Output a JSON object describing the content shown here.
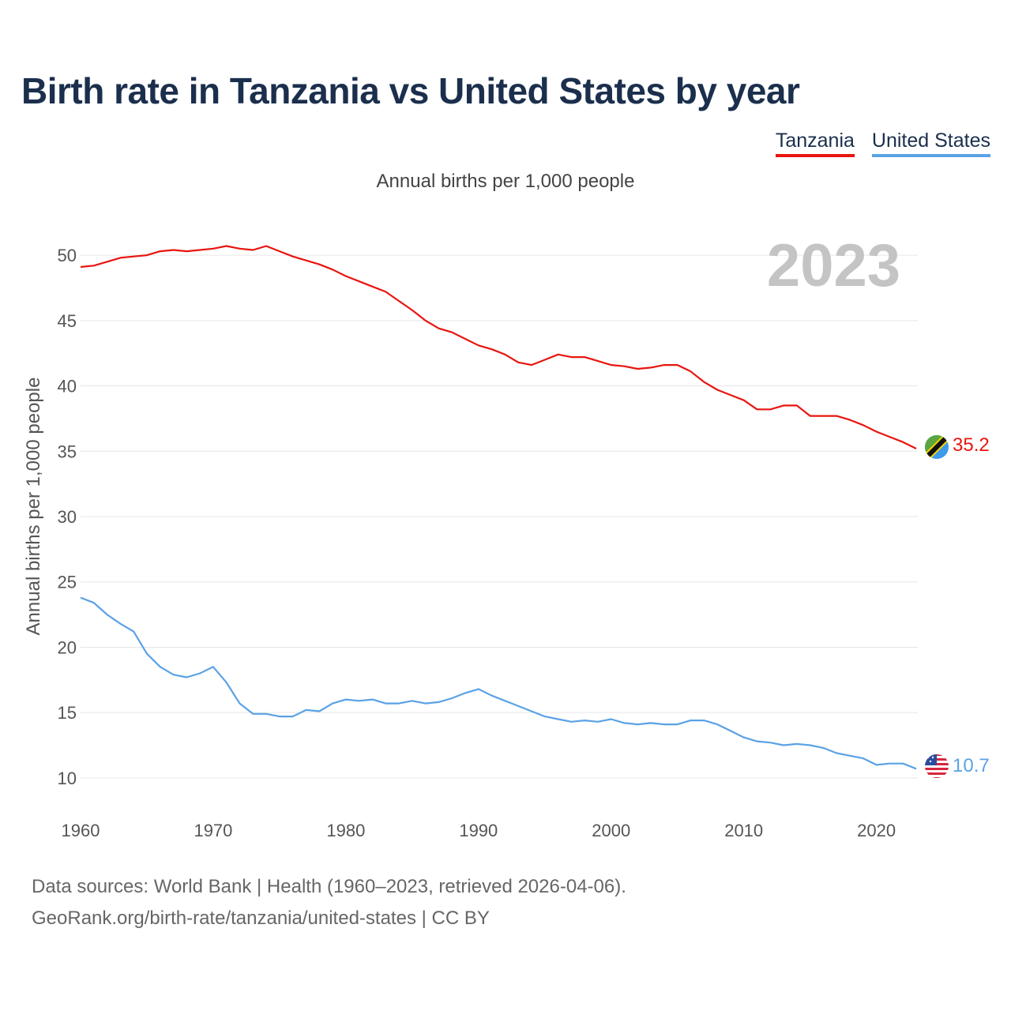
{
  "title": "Birth rate in Tanzania vs United States by year",
  "subtitle": "Annual births per 1,000 people",
  "legend": [
    {
      "label": "Tanzania",
      "color": "#e8150f"
    },
    {
      "label": "United States",
      "color": "#5aa2e6"
    }
  ],
  "source": {
    "line1": "Data sources: World Bank | Health (1960–2023, retrieved 2026-04-06).",
    "line2": "GeoRank.org/birth-rate/tanzania/united-states | CC BY"
  },
  "chart_data": {
    "type": "line",
    "title": "Birth rate in Tanzania vs United States by year",
    "ylabel": "Annual births per 1,000 people",
    "xlabel": "",
    "year_label": "2023",
    "xlim": [
      1960,
      2023
    ],
    "ylim": [
      8,
      52
    ],
    "x_ticks": [
      1960,
      1970,
      1980,
      1990,
      2000,
      2010,
      2020
    ],
    "y_ticks": [
      10,
      15,
      20,
      25,
      30,
      35,
      40,
      45,
      50
    ],
    "grid": true,
    "legend_position": "top-right",
    "x": [
      1960,
      1961,
      1962,
      1963,
      1964,
      1965,
      1966,
      1967,
      1968,
      1969,
      1970,
      1971,
      1972,
      1973,
      1974,
      1975,
      1976,
      1977,
      1978,
      1979,
      1980,
      1981,
      1982,
      1983,
      1984,
      1985,
      1986,
      1987,
      1988,
      1989,
      1990,
      1991,
      1992,
      1993,
      1994,
      1995,
      1996,
      1997,
      1998,
      1999,
      2000,
      2001,
      2002,
      2003,
      2004,
      2005,
      2006,
      2007,
      2008,
      2009,
      2010,
      2011,
      2012,
      2013,
      2014,
      2015,
      2016,
      2017,
      2018,
      2019,
      2020,
      2021,
      2022,
      2023
    ],
    "series": [
      {
        "name": "Tanzania",
        "color": "#e8150f",
        "end_label": "35.2",
        "values": [
          49.1,
          49.2,
          49.5,
          49.8,
          49.9,
          50.0,
          50.3,
          50.4,
          50.3,
          50.4,
          50.5,
          50.7,
          50.5,
          50.4,
          50.7,
          50.3,
          49.9,
          49.6,
          49.3,
          48.9,
          48.4,
          48.0,
          47.6,
          47.2,
          46.5,
          45.8,
          45.0,
          44.4,
          44.1,
          43.6,
          43.1,
          42.8,
          42.4,
          41.8,
          41.6,
          42.0,
          42.4,
          42.2,
          42.2,
          41.9,
          41.6,
          41.5,
          41.3,
          41.4,
          41.6,
          41.6,
          41.1,
          40.3,
          39.7,
          39.3,
          38.9,
          38.2,
          38.2,
          38.5,
          38.5,
          37.7,
          37.7,
          37.7,
          37.4,
          37.0,
          36.5,
          36.1,
          35.7,
          35.2
        ]
      },
      {
        "name": "United States",
        "color": "#5aa2e6",
        "end_label": "10.7",
        "values": [
          23.8,
          23.4,
          22.5,
          21.8,
          21.2,
          19.5,
          18.5,
          17.9,
          17.7,
          18.0,
          18.5,
          17.3,
          15.7,
          14.9,
          14.9,
          14.7,
          14.7,
          15.2,
          15.1,
          15.7,
          16.0,
          15.9,
          16.0,
          15.7,
          15.7,
          15.9,
          15.7,
          15.8,
          16.1,
          16.5,
          16.8,
          16.3,
          15.9,
          15.5,
          15.1,
          14.7,
          14.5,
          14.3,
          14.4,
          14.3,
          14.5,
          14.2,
          14.1,
          14.2,
          14.1,
          14.1,
          14.4,
          14.4,
          14.1,
          13.6,
          13.1,
          12.8,
          12.7,
          12.5,
          12.6,
          12.5,
          12.3,
          11.9,
          11.7,
          11.5,
          11.0,
          11.1,
          11.1,
          10.7
        ]
      }
    ]
  }
}
